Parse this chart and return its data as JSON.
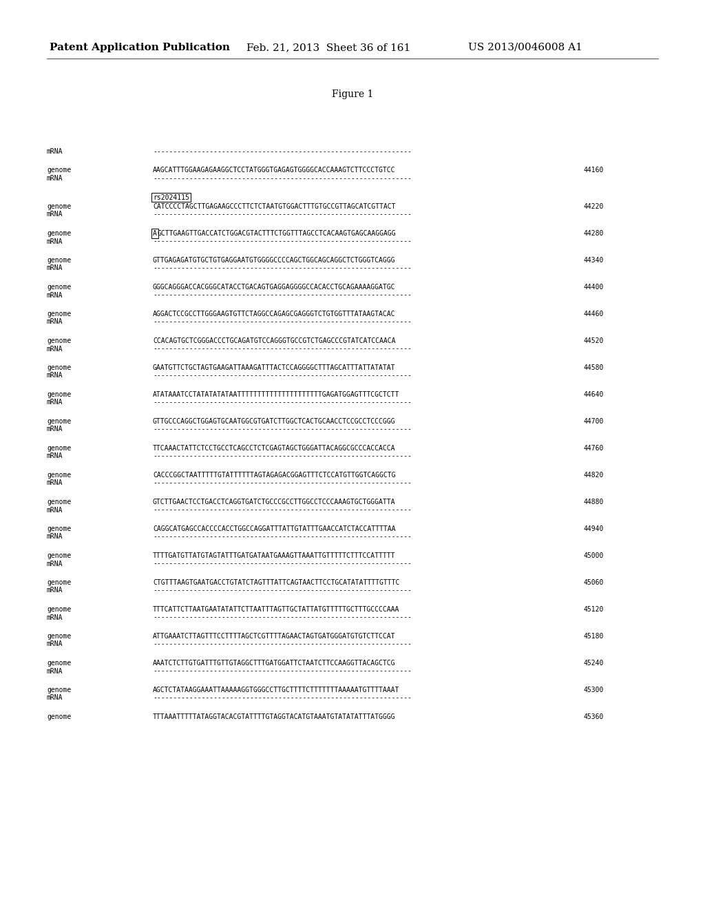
{
  "header_left": "Patent Application Publication",
  "header_mid": "Feb. 21, 2013  Sheet 36 of 161",
  "header_right": "US 2013/0046008 A1",
  "figure_title": "Figure 1",
  "bg_color": "#ffffff",
  "header_fontsize": 11,
  "figure_title_fontsize": 10,
  "label_fontsize": 7.0,
  "seq_fontsize": 7.0,
  "rows": [
    {
      "type": "mrna_only",
      "mrna": "----------------------------------------------------------------"
    },
    {
      "type": "genome_mrna",
      "genome": "AAGCATTTGGAAGAGAAGGCTCCTATGGGTGAGAGTGGGGCACCAAAGTCTTCCCTGTCC",
      "num": "44160",
      "mrna": "----------------------------------------------------------------"
    },
    {
      "type": "genome_mrna",
      "genome": "CATCCCCTAGCTTGAGAAGCCCTTCTCTAATGTGGACTTTGTGCCGTTAGCATCGTTACT",
      "num": "44220",
      "mrna": "----------------------------------------------------------------",
      "snp_label": "rs2024115"
    },
    {
      "type": "genome_mrna",
      "genome": "AGCTTGAAGTTGACCATCTGGACGTACTTTCTGGTTTAGCCTCACAAGTGAGCAAGGAGG",
      "num": "44280",
      "mrna": "----------------------------------------------------------------",
      "snp_boxed_first": true
    },
    {
      "type": "genome_mrna",
      "genome": "GTTGAGAGATGTGCTGTGAGGAATGTGGGGCCCCAGCTGGCAGCAGGCTCTGGGTCAGGG",
      "num": "44340",
      "mrna": "----------------------------------------------------------------"
    },
    {
      "type": "genome_mrna",
      "genome": "GGGCAGGGACCACGGGCATACCTGACAGTGAGGAGGGGCCACACCTGCAGAAAAGGATGC",
      "num": "44400",
      "mrna": "----------------------------------------------------------------"
    },
    {
      "type": "genome_mrna",
      "genome": "AGGACTCCGCCTTGGGAAGTGTTCTAGGCCAGAGCGAGGGTCTGTGGTTTATAAGTACAC",
      "num": "44460",
      "mrna": "----------------------------------------------------------------"
    },
    {
      "type": "genome_mrna",
      "genome": "CCACAGTGCTCGGGACCCTGCAGATGTCCAGGGTGCCGTCTGAGCCCGTATCATCCAACA",
      "num": "44520",
      "mrna": "----------------------------------------------------------------"
    },
    {
      "type": "genome_mrna",
      "genome": "GAATGTTCTGCTAGTGAAGATTAAAGATTTACTCCAGGGGCTTTAGCATTTATTATATAT",
      "num": "44580",
      "mrna": "----------------------------------------------------------------"
    },
    {
      "type": "genome_mrna",
      "genome": "ATATAAATCCTATATATATAATTTTTTTTTTTTTTTTTTTTTGAGATGGAGTTTCGCTCTT",
      "num": "44640",
      "mrna": "----------------------------------------------------------------"
    },
    {
      "type": "genome_mrna",
      "genome": "GTTGCCCAGGCTGGAGTGCAATGGCGTGATCTTGGCTCACTGCAACCTCCGCCTCCCGGG",
      "num": "44700",
      "mrna": "----------------------------------------------------------------"
    },
    {
      "type": "genome_mrna",
      "genome": "TTCAAACTATTCTCCTGCCTCAGCCTCTCGAGTAGCTGGGATTACAGGCGCCCACCACCA",
      "num": "44760",
      "mrna": "----------------------------------------------------------------"
    },
    {
      "type": "genome_mrna",
      "genome": "CACCCGGCTAATTTTTGTATTTTTTAGTAGAGACGGAGTTTCTCCATGTTGGTCAGGCTG",
      "num": "44820",
      "mrna": "----------------------------------------------------------------"
    },
    {
      "type": "genome_mrna",
      "genome": "GTCTTGAACTCCTGACCTCAGGTGATCTGCCCGCCTTGGCCTCCCAAAGTGCTGGGATTA",
      "num": "44880",
      "mrna": "----------------------------------------------------------------"
    },
    {
      "type": "genome_mrna",
      "genome": "CAGGCATGAGCCACCCCACCTGGCCAGGATTTATTGTATTTGAACCATCTACCATTTTAA",
      "num": "44940",
      "mrna": "----------------------------------------------------------------"
    },
    {
      "type": "genome_mrna",
      "genome": "TTTTGATGTTATGTAGTATTTGATGATAATGAAAGTTAAATTGTTTTTCTTTCCATTTTT",
      "num": "45000",
      "mrna": "----------------------------------------------------------------"
    },
    {
      "type": "genome_mrna",
      "genome": "CTGTTTAAGTGAATGACCTGTATCTAGTTTATTCAGTAACTTCCTGCATATATTTTGTTTC",
      "num": "45060",
      "mrna": "----------------------------------------------------------------"
    },
    {
      "type": "genome_mrna",
      "genome": "TTTCATTCTTAATGAATATATTCTTAATTTAGTTGCTATTATGTTTTTGCTTTGCCCCAAA",
      "num": "45120",
      "mrna": "----------------------------------------------------------------"
    },
    {
      "type": "genome_mrna",
      "genome": "ATTGAAATCTTAGTTTCCTTTTAGCTCGTTTTAGAACTAGTGATGGGATGTGTCTTCCAT",
      "num": "45180",
      "mrna": "----------------------------------------------------------------"
    },
    {
      "type": "genome_mrna",
      "genome": "AAATCTCTTGTGATTTGTTGTAGGCTTTGATGGATTCTAATCTTCCAAGGTTACAGCTCG",
      "num": "45240",
      "mrna": "----------------------------------------------------------------"
    },
    {
      "type": "genome_mrna",
      "genome": "AGCTCTATAAGGAAATTAAAAAGGTGGGCCTTGCTTTTCTTTTTTTAAAAATGTTTTAAAT",
      "num": "45300",
      "mrna": "----------------------------------------------------------------"
    },
    {
      "type": "genome_only",
      "genome": "TTTAAATTTTTATAGGTACACGTATTTTGTAGGTACATGTAAATGTATATATTTATGGGG",
      "num": "45360"
    }
  ]
}
